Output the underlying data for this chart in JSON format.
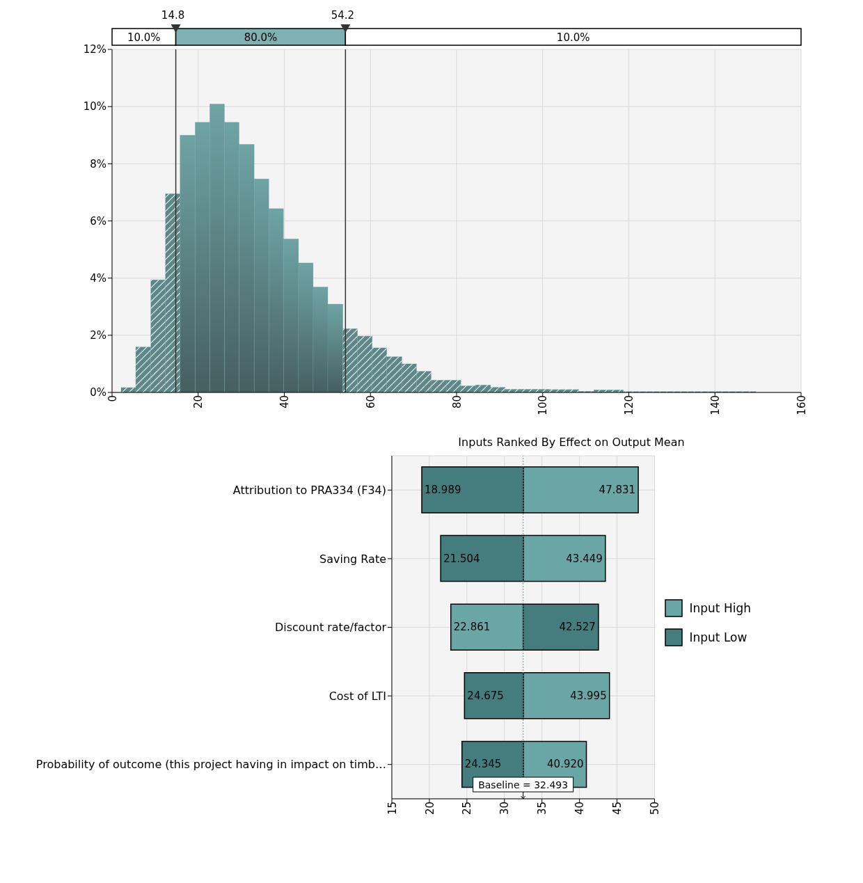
{
  "chart_data": [
    {
      "type": "histogram",
      "color": "#6fa3a4",
      "bins": [
        2.1,
        5.5,
        9.0,
        12.4,
        15.8,
        19.3,
        22.7,
        26.1,
        29.5,
        33.0,
        36.4,
        39.8,
        43.3,
        46.7,
        50.1,
        53.6,
        57.0,
        60.4,
        63.8,
        67.3,
        70.7,
        74.1,
        77.6,
        81.0,
        84.4,
        87.9,
        91.3,
        94.7,
        98.1,
        101.6,
        105.0,
        108.4,
        111.9,
        115.3,
        118.7,
        122.2,
        125.6,
        129.0,
        132.4,
        135.9,
        139.3,
        142.7,
        146.2,
        149.6
      ],
      "values": [
        0.17,
        1.59,
        3.94,
        6.95,
        9.0,
        9.45,
        10.09,
        9.45,
        8.68,
        7.47,
        6.43,
        5.37,
        4.53,
        3.69,
        3.09,
        2.23,
        1.97,
        1.56,
        1.25,
        1.0,
        0.74,
        0.43,
        0.43,
        0.23,
        0.26,
        0.18,
        0.11,
        0.11,
        0.11,
        0.1,
        0.1,
        0.04,
        0.09,
        0.09,
        0.03,
        0.03,
        0.03,
        0.03,
        0.03,
        0.03,
        0.03,
        0.03,
        0.03
      ],
      "xlim": [
        0,
        160
      ],
      "xticks": [
        0,
        20,
        40,
        60,
        80,
        100,
        120,
        140,
        160
      ],
      "ylim": [
        0,
        12
      ],
      "yticks": [
        {
          "value": 0,
          "label": "0%"
        },
        {
          "value": 2,
          "label": "2%"
        },
        {
          "value": 4,
          "label": "4%"
        },
        {
          "value": 6,
          "label": "6%"
        },
        {
          "value": 8,
          "label": "8%"
        },
        {
          "value": 10,
          "label": "10%"
        },
        {
          "value": 12,
          "label": "12%"
        }
      ],
      "grid": true,
      "ref_lines": [
        {
          "axis": "x",
          "value": 14.8,
          "label": "14.8"
        },
        {
          "axis": "x",
          "value": 54.2,
          "label": "54.2"
        }
      ],
      "annotations": [
        "10.0%",
        "80.0%",
        "10.0%"
      ]
    },
    {
      "type": "bar",
      "orientation": "horizontal",
      "title": "Inputs Ranked By Effect on Output Mean",
      "categories": [
        "Attribution to PRA334 (F34)",
        "Saving Rate",
        "Discount rate/factor",
        "Cost of LTI",
        "Probability of outcome (this project having in impact on timb…"
      ],
      "series": [
        {
          "name": "Input High",
          "color": "#6aa6a6",
          "base": [
            32.493,
            32.493,
            32.493,
            32.493,
            32.493
          ],
          "values": [
            15.338,
            10.956,
            -9.632,
            11.502,
            8.427
          ],
          "value_labels": [
            "47.831",
            "43.449",
            "22.861",
            "43.995",
            "40.920"
          ]
        },
        {
          "name": "Input Low",
          "color": "#457c7e",
          "base": [
            32.493,
            32.493,
            32.493,
            32.493,
            32.493
          ],
          "values": [
            -13.504,
            -10.989,
            10.034,
            -7.818,
            -8.148
          ],
          "value_labels": [
            "18.989",
            "21.504",
            "42.527",
            "24.675",
            "24.345"
          ]
        }
      ],
      "xlim": [
        15,
        50
      ],
      "xticks": [
        15,
        20,
        25,
        30,
        35,
        40,
        45,
        50
      ],
      "grid": true,
      "legend": "right",
      "ref_lines": [
        {
          "axis": "x",
          "value": 32.493,
          "label": "Baseline = 32.493",
          "line_style": "dotted",
          "color": "#5f9c9c"
        }
      ]
    }
  ]
}
